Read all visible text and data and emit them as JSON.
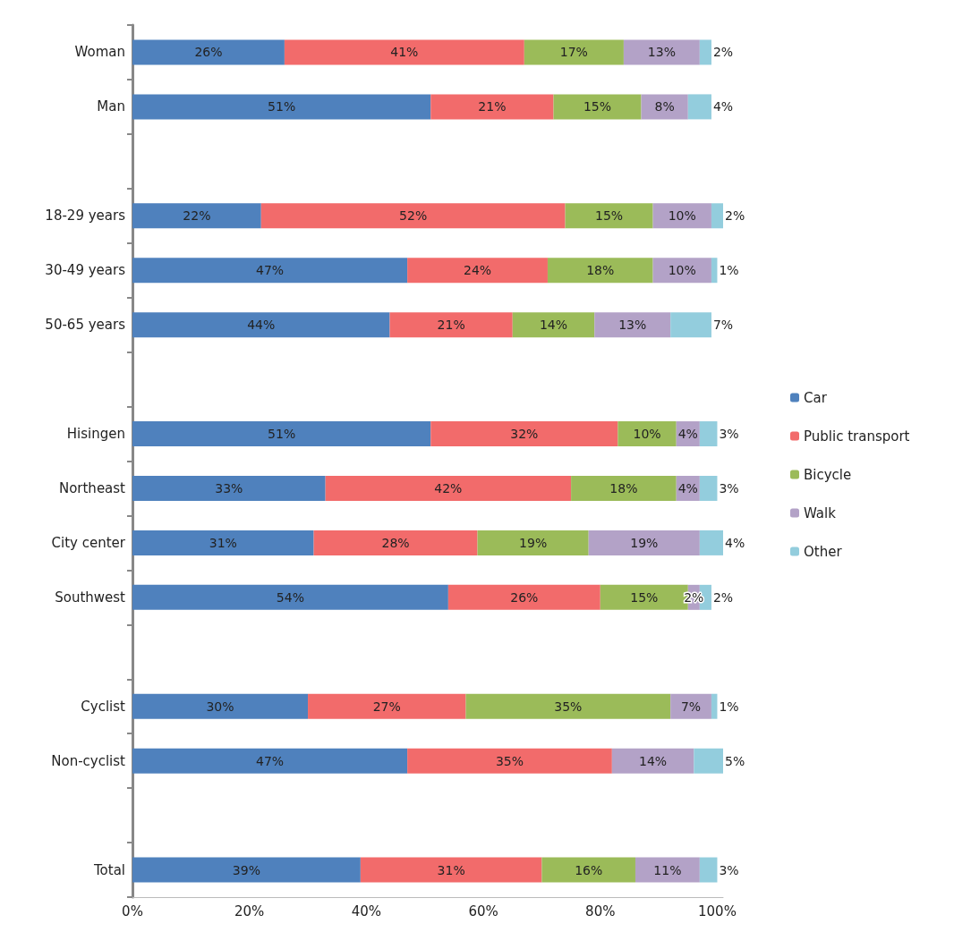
{
  "chart_data": {
    "type": "bar",
    "orientation": "horizontal",
    "stacked": true,
    "categories": [
      "Woman",
      "Man",
      null,
      "18-29 years",
      "30-49 years",
      "50-65 years",
      null,
      "Hisingen",
      "Northeast",
      "City center",
      "Southwest",
      null,
      "Cyclist",
      "Non-cyclist",
      null,
      "Total"
    ],
    "series": [
      {
        "name": "Car",
        "color": "#4f81bd",
        "values": [
          26,
          51,
          null,
          22,
          47,
          44,
          null,
          51,
          33,
          31,
          54,
          null,
          30,
          47,
          null,
          39
        ],
        "value_labels": [
          "26%",
          "51%",
          null,
          "22%",
          "47%",
          "44%",
          null,
          "51%",
          "33%",
          "31%",
          "54%",
          null,
          "30%",
          "47%",
          null,
          "39%"
        ]
      },
      {
        "name": "Public transport",
        "color": "#f26b6b",
        "values": [
          41,
          21,
          null,
          52,
          24,
          21,
          null,
          32,
          42,
          28,
          26,
          null,
          27,
          35,
          null,
          31
        ],
        "value_labels": [
          "41%",
          "21%",
          null,
          "52%",
          "24%",
          "21%",
          null,
          "32%",
          "42%",
          "28%",
          "26%",
          null,
          "27%",
          "35%",
          null,
          "31%"
        ]
      },
      {
        "name": "Bicycle",
        "color": "#9bbb59",
        "values": [
          17,
          15,
          null,
          15,
          18,
          14,
          null,
          10,
          18,
          19,
          15,
          null,
          35,
          null,
          null,
          16
        ],
        "value_labels": [
          "17%",
          "15%",
          null,
          "15%",
          "18%",
          "14%",
          null,
          "10%",
          "18%",
          "19%",
          "15%",
          null,
          "35%",
          null,
          null,
          "16%"
        ]
      },
      {
        "name": "Walk",
        "color": "#b3a2c7",
        "values": [
          13,
          8,
          null,
          10,
          10,
          13,
          null,
          4,
          4,
          19,
          2,
          null,
          7,
          14,
          null,
          11
        ],
        "value_labels": [
          "13%",
          "8%",
          null,
          "10%",
          "10%",
          "13%",
          null,
          "4%",
          "4%",
          "19%",
          "2%",
          null,
          "7%",
          "14%",
          null,
          "11%"
        ]
      },
      {
        "name": "Other",
        "color": "#93cddd",
        "values": [
          2,
          4,
          null,
          2,
          1,
          7,
          null,
          3,
          3,
          4,
          2,
          null,
          1,
          5,
          null,
          3
        ],
        "value_labels": [
          "2%",
          "4%",
          null,
          "2%",
          "1%",
          "7%",
          null,
          "3%",
          "3%",
          "4%",
          "2%",
          null,
          "1%",
          "5%",
          null,
          "3%"
        ]
      }
    ],
    "xlim": [
      0,
      101
    ],
    "xticks": [
      {
        "value": 0,
        "label": "0%"
      },
      {
        "value": 20,
        "label": "20%"
      },
      {
        "value": 40,
        "label": "40%"
      },
      {
        "value": 60,
        "label": "60%"
      },
      {
        "value": 80,
        "label": "80%"
      },
      {
        "value": 100,
        "label": "100%"
      }
    ],
    "grid": false,
    "legend": "right"
  }
}
